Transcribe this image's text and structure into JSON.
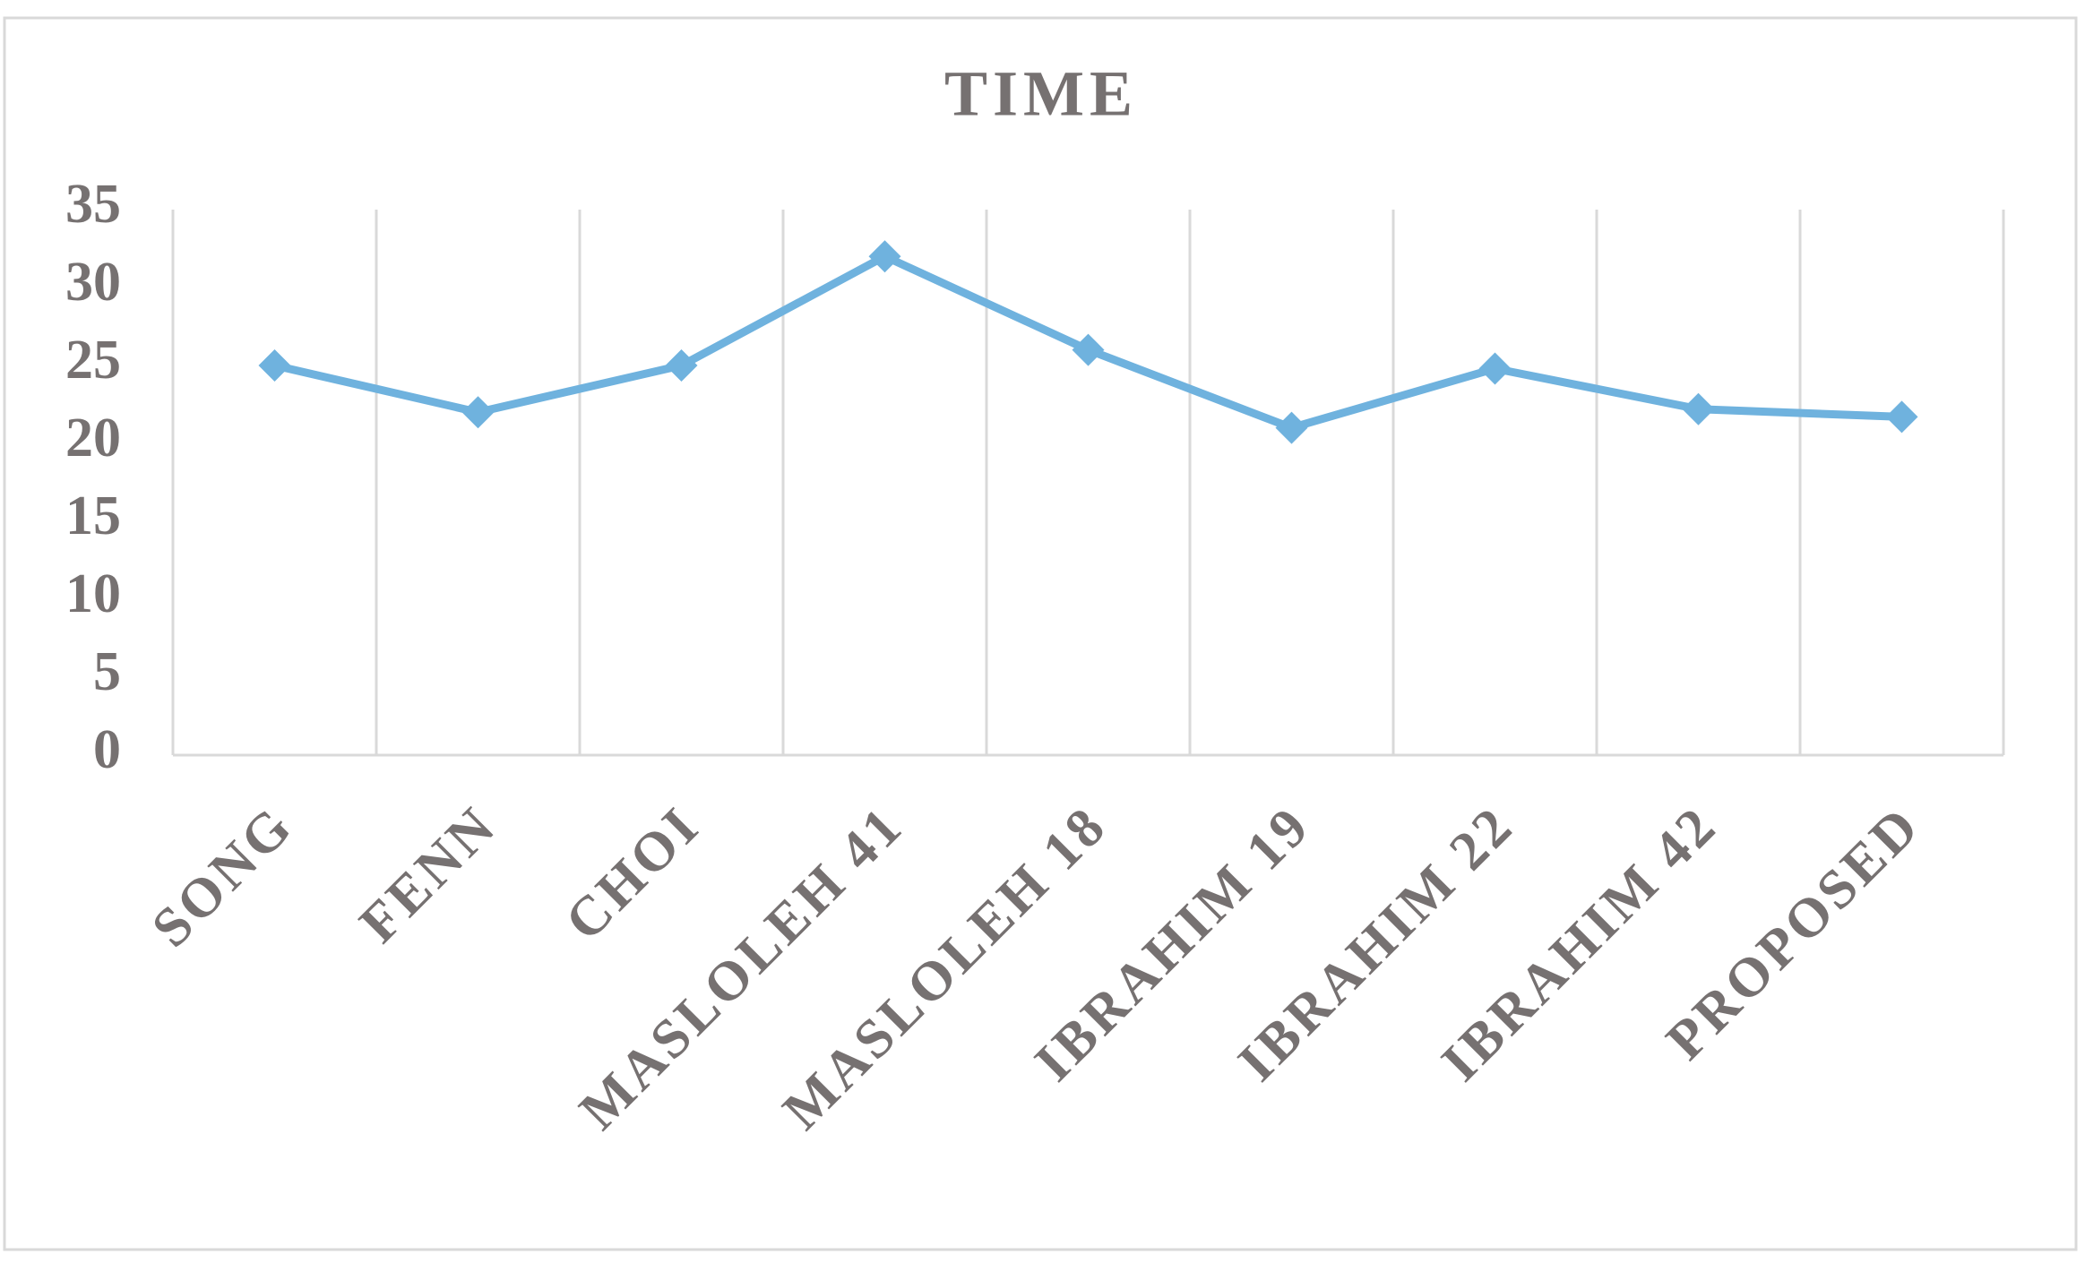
{
  "chart_data": {
    "type": "line",
    "title": "TIME",
    "categories": [
      "SONG",
      "FENN",
      "CHOI",
      "MASLOLEH 41",
      "MASLOLEH 18",
      "IBRAHIM 19",
      "IBRAHIM 22",
      "IBRAHIM 42",
      "PROPOSED"
    ],
    "values": [
      25,
      22,
      25,
      32,
      26,
      21,
      24.8,
      22.2,
      21.7
    ],
    "color": "#6fb2de",
    "ylim": [
      0,
      35
    ],
    "yticks": [
      0,
      5,
      10,
      15,
      20,
      25,
      30,
      35
    ]
  }
}
